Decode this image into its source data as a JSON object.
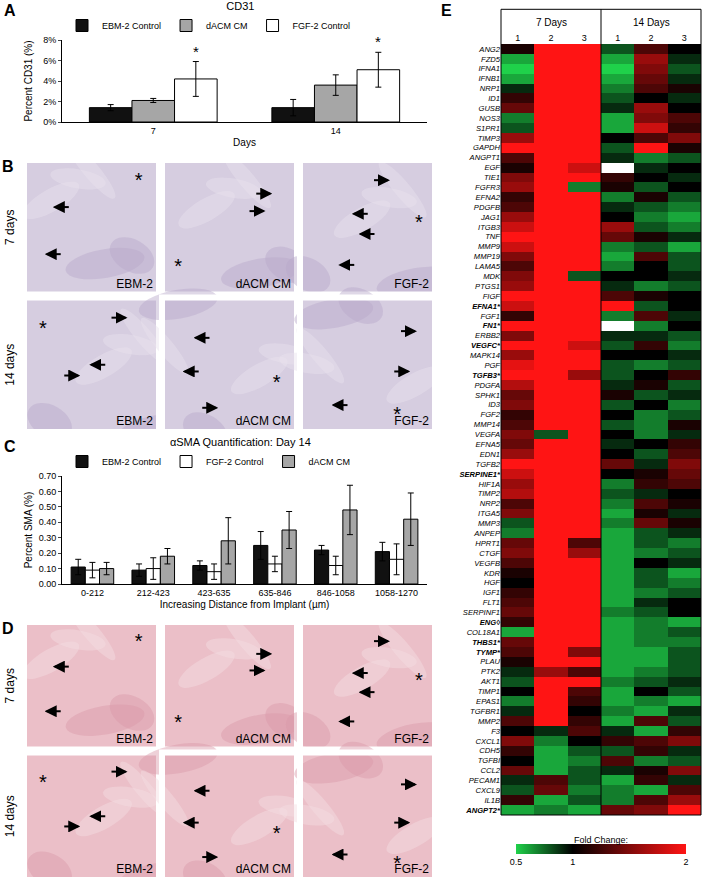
{
  "chart_data": [
    {
      "panel": "A",
      "type": "bar",
      "title": "CD31",
      "x_label": "Days",
      "y_label": "Percent CD31 (%)",
      "categories": [
        "7",
        "14"
      ],
      "series": [
        {
          "name": "EBM-2 Control",
          "color": "#111111",
          "values": [
            1.4,
            1.4
          ],
          "errors": [
            0.3,
            0.8
          ]
        },
        {
          "name": "dACM CM",
          "color": "#a6a6a6",
          "values": [
            2.1,
            3.6
          ],
          "errors": [
            0.2,
            1.0
          ]
        },
        {
          "name": "FGF-2 Control",
          "color": "#ffffff",
          "values": [
            4.2,
            5.1
          ],
          "errors": [
            1.7,
            1.7
          ]
        }
      ],
      "ylim": [
        0,
        8
      ],
      "yticks": [
        {
          "value": 0,
          "label": "0%"
        },
        {
          "value": 2,
          "label": "2%"
        },
        {
          "value": 4,
          "label": "4%"
        },
        {
          "value": 6,
          "label": "6%"
        },
        {
          "value": 8,
          "label": "8%"
        }
      ],
      "grid": false,
      "legend": "top left",
      "annotations": [
        {
          "text": "*",
          "category": "7",
          "series": "FGF-2 Control"
        },
        {
          "text": "*",
          "category": "14",
          "series": "FGF-2 Control"
        }
      ]
    },
    {
      "panel": "C",
      "type": "bar",
      "title": "αSMA Quantification: Day 14",
      "x_label": "Increasing Distance from Implant (µm)",
      "y_label": "Percent SMA (%)",
      "categories": [
        "0-212",
        "212-423",
        "423-635",
        "635-846",
        "846-1058",
        "1058-1270"
      ],
      "series": [
        {
          "name": "EBM-2 Control",
          "color": "#111111",
          "values": [
            0.11,
            0.09,
            0.12,
            0.25,
            0.22,
            0.21
          ],
          "errors": [
            0.05,
            0.04,
            0.03,
            0.09,
            0.03,
            0.06
          ]
        },
        {
          "name": "FGF-2 Control",
          "color": "#ffffff",
          "values": [
            0.09,
            0.1,
            0.08,
            0.13,
            0.12,
            0.16
          ],
          "errors": [
            0.05,
            0.07,
            0.05,
            0.05,
            0.06,
            0.1
          ]
        },
        {
          "name": "dACM CM",
          "color": "#a6a6a6",
          "values": [
            0.1,
            0.18,
            0.28,
            0.35,
            0.48,
            0.42
          ],
          "errors": [
            0.04,
            0.05,
            0.15,
            0.12,
            0.16,
            0.17
          ]
        }
      ],
      "ylim": [
        0,
        0.7
      ],
      "yticks": [
        {
          "value": 0,
          "label": "0.00"
        },
        {
          "value": 0.1,
          "label": "0.10"
        },
        {
          "value": 0.2,
          "label": "0.20"
        },
        {
          "value": 0.3,
          "label": "0.30"
        },
        {
          "value": 0.4,
          "label": "0.40"
        },
        {
          "value": 0.5,
          "label": "0.50"
        },
        {
          "value": 0.6,
          "label": "0.60"
        },
        {
          "value": 0.7,
          "label": "0.70"
        }
      ],
      "grid": false,
      "legend": "top left"
    },
    {
      "panel": "E",
      "type": "heatmap",
      "x_groups": [
        {
          "label": "7 Days",
          "columns": [
            "1",
            "2",
            "3"
          ]
        },
        {
          "label": "14 Days",
          "columns": [
            "1",
            "2",
            "3"
          ]
        }
      ],
      "genes": [
        "ANG2",
        "FZD5",
        "IFNA1",
        "IFNB1",
        "NRP1",
        "ID1",
        "GUSB",
        "NOS3",
        "S1PR1",
        "TIMP3",
        "GAPDH",
        "ANGPT1",
        "EGF",
        "TIE1",
        "FGFR3",
        "EFNA2",
        "PDGFB",
        "JAG1",
        "ITGB3",
        "TNF",
        "MMP9",
        "MMP19",
        "LAMA5",
        "MDK",
        "PTGS1",
        "FIGF",
        "EFNA1*",
        "FGF1",
        "FN1*",
        "ERBB2",
        "VEGFC*",
        "MAPK14",
        "PGF",
        "TGFB3*",
        "PDGFA",
        "SPHK1",
        "ID3",
        "FGF2",
        "MMP14",
        "VEGFA",
        "EFNA5",
        "EDN1",
        "TGFB2",
        "SERPINE1*",
        "HIF1A",
        "TIMP2",
        "NRP2",
        "ITGA5",
        "MMP3",
        "ANPEP",
        "HPRT1",
        "CTGF",
        "VEGFB",
        "KDR",
        "HGF",
        "IGF1",
        "FLT1",
        "SERPINF1",
        "ENG◊",
        "COL18A1",
        "THBS1*",
        "TYMP*",
        "PLAU",
        "PTK2",
        "AKT1",
        "TIMP1",
        "EPAS1",
        "TGFBR1",
        "MMP2",
        "F3",
        "CXCL1",
        "CDH5",
        "TGFBI",
        "CCL2",
        "PECAM1",
        "CXCL9",
        "IL1B",
        "ANGPT2*"
      ],
      "cells": [
        [
          1.1,
          2,
          2,
          0.8,
          1.3,
          1.0
        ],
        [
          0.6,
          2,
          2,
          0.6,
          1.6,
          0.9
        ],
        [
          0.5,
          2,
          2,
          0.5,
          1.5,
          0.8
        ],
        [
          0.6,
          2,
          2,
          0.6,
          1.4,
          0.9
        ],
        [
          0.9,
          2,
          2,
          0.7,
          1.3,
          1.1
        ],
        [
          1.2,
          2,
          2,
          0.8,
          1.0,
          0.9
        ],
        [
          1.4,
          2,
          2,
          0.9,
          1.6,
          1.0
        ],
        [
          0.7,
          2,
          2,
          0.6,
          1.5,
          1.3
        ],
        [
          0.8,
          2,
          2,
          0.6,
          1.8,
          1.2
        ],
        [
          1.6,
          2,
          2,
          1.0,
          1.3,
          1.5
        ],
        [
          2,
          2,
          2,
          0.8,
          2,
          1.1
        ],
        [
          1.3,
          2,
          2,
          0.9,
          0.7,
          0.8
        ],
        [
          1.1,
          2,
          1.8,
          null,
          0.9,
          1.0
        ],
        [
          1.5,
          2,
          2,
          1.2,
          1.0,
          0.9
        ],
        [
          1.6,
          2,
          0.7,
          1.1,
          0.8,
          1.0
        ],
        [
          1.2,
          2,
          2,
          0.7,
          1.1,
          0.8
        ],
        [
          1.3,
          2,
          2,
          0.9,
          0.8,
          0.7
        ],
        [
          1.6,
          2,
          2,
          1.0,
          0.7,
          0.6
        ],
        [
          1.8,
          2,
          2,
          1.6,
          0.8,
          0.7
        ],
        [
          2,
          2,
          2,
          1.4,
          1.1,
          0.9
        ],
        [
          1.8,
          2,
          2,
          0.7,
          0.8,
          0.6
        ],
        [
          1.5,
          2,
          2,
          0.6,
          1.3,
          0.8
        ],
        [
          1.3,
          2,
          2,
          0.7,
          1.0,
          0.8
        ],
        [
          1.5,
          2,
          0.8,
          1.0,
          1.0,
          0.9
        ],
        [
          1.6,
          2,
          2,
          0.9,
          0.7,
          0.8
        ],
        [
          2,
          2,
          2,
          1.3,
          1.1,
          1.0
        ],
        [
          1.8,
          2,
          2,
          2,
          0.8,
          1.0
        ],
        [
          1.2,
          2,
          2,
          0.7,
          1.3,
          0.9
        ],
        [
          2,
          2,
          2,
          null,
          0.7,
          1.0
        ],
        [
          1.5,
          2,
          2,
          0.9,
          0.9,
          0.8
        ],
        [
          2,
          2,
          1.8,
          0.8,
          1.2,
          0.7
        ],
        [
          1.6,
          2,
          2,
          1.0,
          1.0,
          0.9
        ],
        [
          1.9,
          2,
          2,
          0.8,
          0.7,
          0.8
        ],
        [
          2,
          2,
          1.6,
          0.8,
          1.0,
          1.2
        ],
        [
          1.7,
          2,
          2,
          0.9,
          1.1,
          0.8
        ],
        [
          1.4,
          2,
          2,
          1.1,
          0.8,
          0.9
        ],
        [
          1.5,
          2,
          2,
          0.8,
          1.0,
          0.7
        ],
        [
          1.2,
          2,
          2,
          1.0,
          0.7,
          0.8
        ],
        [
          1.3,
          2,
          2,
          0.8,
          0.7,
          1.1
        ],
        [
          1.5,
          0.8,
          2,
          1.0,
          0.7,
          0.9
        ],
        [
          1.4,
          2,
          2,
          0.9,
          1.0,
          1.2
        ],
        [
          1.6,
          2,
          2,
          1.0,
          0.8,
          1.3
        ],
        [
          2,
          2,
          2,
          1.4,
          0.9,
          1.5
        ],
        [
          1.8,
          2,
          2,
          1.0,
          1.1,
          1.4
        ],
        [
          1.6,
          2,
          2,
          0.7,
          1.2,
          1.3
        ],
        [
          1.7,
          2,
          2,
          0.8,
          0.9,
          1.0
        ],
        [
          1.3,
          2,
          2,
          0.7,
          1.3,
          1.1
        ],
        [
          1.5,
          2,
          2,
          0.6,
          1.1,
          0.9
        ],
        [
          0.8,
          2,
          2,
          0.7,
          1.4,
          1.1
        ],
        [
          0.7,
          2,
          2,
          0.6,
          0.8,
          0.9
        ],
        [
          1.4,
          2,
          1.3,
          0.6,
          0.8,
          0.7
        ],
        [
          1.5,
          2,
          1.6,
          0.6,
          0.7,
          0.8
        ],
        [
          1.3,
          2,
          2,
          0.6,
          1.0,
          0.9
        ],
        [
          1.1,
          2,
          2,
          0.6,
          0.8,
          0.6
        ],
        [
          1.0,
          2,
          2,
          0.6,
          0.8,
          0.7
        ],
        [
          1.2,
          2,
          2,
          0.6,
          0.7,
          0.8
        ],
        [
          1.3,
          2,
          2,
          0.6,
          0.9,
          1.0
        ],
        [
          1.4,
          2,
          2,
          0.7,
          0.8,
          1.0
        ],
        [
          1.2,
          2,
          2,
          0.6,
          0.7,
          0.6
        ],
        [
          0.6,
          2,
          2,
          0.6,
          0.7,
          0.8
        ],
        [
          1.4,
          2,
          2,
          0.6,
          0.7,
          0.7
        ],
        [
          1.3,
          2,
          1.5,
          0.6,
          0.6,
          0.8
        ],
        [
          1.1,
          2,
          2,
          0.6,
          0.6,
          0.8
        ],
        [
          0.9,
          1.6,
          1.3,
          0.6,
          0.7,
          0.8
        ],
        [
          0.8,
          2,
          2,
          0.7,
          0.8,
          0.9
        ],
        [
          1.0,
          2,
          1.3,
          0.6,
          1.0,
          0.8
        ],
        [
          0.7,
          2,
          1.2,
          0.6,
          0.7,
          0.6
        ],
        [
          0.9,
          2,
          1.0,
          0.7,
          0.6,
          0.9
        ],
        [
          1.3,
          2,
          1.2,
          0.6,
          1.3,
          0.8
        ],
        [
          1.0,
          0.9,
          1.3,
          0.9,
          0.6,
          1.2
        ],
        [
          1.5,
          0.7,
          1.0,
          1.2,
          1.3,
          1.5
        ],
        [
          1.2,
          0.6,
          0.8,
          0.8,
          1.2,
          0.9
        ],
        [
          1.0,
          0.6,
          0.7,
          1.3,
          0.7,
          0.8
        ],
        [
          1.4,
          0.6,
          0.8,
          0.9,
          1.1,
          1.5
        ],
        [
          0.9,
          1.3,
          0.8,
          0.6,
          1.2,
          0.9
        ],
        [
          0.8,
          1.4,
          0.7,
          0.7,
          0.6,
          1.3
        ],
        [
          1.2,
          0.6,
          0.8,
          0.7,
          1.3,
          1.6
        ],
        [
          0.6,
          0.7,
          0.6,
          1.4,
          1.5,
          2
        ]
      ],
      "colorbar": {
        "title": "Fold Change:",
        "range": [
          0.5,
          2
        ],
        "ticks": [
          0.5,
          1,
          2
        ]
      }
    }
  ],
  "micrographs": [
    {
      "panel": "B",
      "rows": [
        "7 days",
        "14 days"
      ],
      "columns": [
        "EBM-2",
        "dACM CM",
        "FGF-2"
      ],
      "implant_mark": "*"
    },
    {
      "panel": "D",
      "rows": [
        "7 days",
        "14 days"
      ],
      "columns": [
        "EBM-2",
        "dACM CM",
        "FGF-2"
      ],
      "implant_mark": "*"
    }
  ]
}
